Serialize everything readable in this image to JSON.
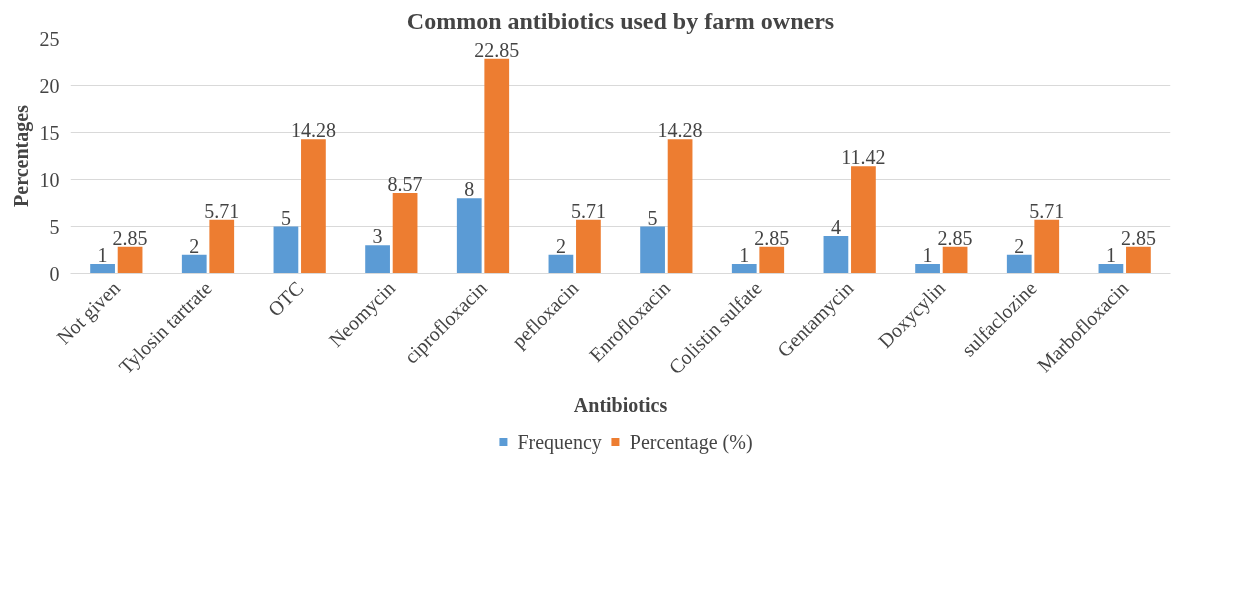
{
  "chart_data": {
    "type": "bar",
    "title": "Common antibiotics used by farm owners",
    "xlabel": "Antibiotics",
    "ylabel": "Percentages",
    "categories": [
      "Not given",
      "Tylosin tartrate",
      "OTC",
      "Neomycin",
      "ciprofloxacin",
      "pefloxacin",
      "Enrofloxacin",
      "Colistin sulfate",
      "Gentamycin",
      "Doxycylin",
      "sulfaclozine",
      "Marbofloxacin"
    ],
    "series": [
      {
        "name": "Frequency",
        "color": "#5b9bd5",
        "values": [
          1,
          2,
          5,
          3,
          8,
          2,
          5,
          1,
          4,
          1,
          2,
          1
        ]
      },
      {
        "name": "Percentage (%)",
        "color": "#ed7d31",
        "values": [
          2.85,
          5.71,
          14.28,
          8.57,
          22.85,
          5.71,
          14.28,
          2.85,
          11.42,
          2.85,
          5.71,
          2.85
        ]
      }
    ],
    "ylim": [
      0,
      25
    ],
    "yticks": [
      0,
      5,
      10,
      15,
      20,
      25
    ],
    "grid": "y",
    "legend": "bottom",
    "data_labels": true
  }
}
